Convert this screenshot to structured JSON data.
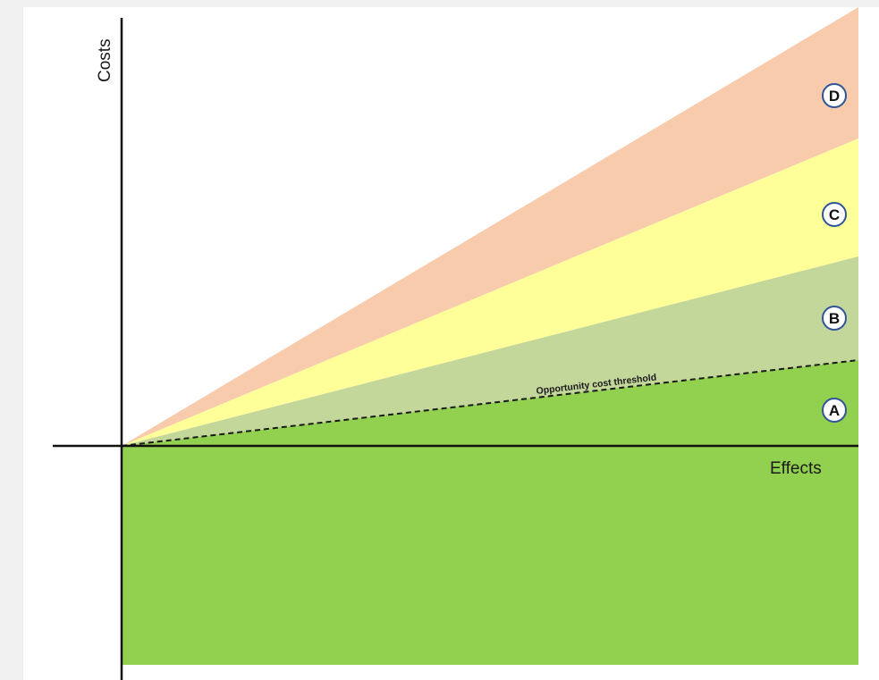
{
  "axes": {
    "x_label": "Effects",
    "y_label": "Costs"
  },
  "threshold": {
    "label": "Opportunity cost threshold"
  },
  "zones": [
    {
      "letter": "A",
      "color": "#92d050"
    },
    {
      "letter": "B",
      "color": "#c4d79b"
    },
    {
      "letter": "C",
      "color": "#ffff99"
    },
    {
      "letter": "D",
      "color": "#f8cbad"
    }
  ],
  "colors": {
    "background": "#ffffff",
    "page": "#f0f0f0",
    "axis": "#111111",
    "badge_border": "#2f5597"
  }
}
